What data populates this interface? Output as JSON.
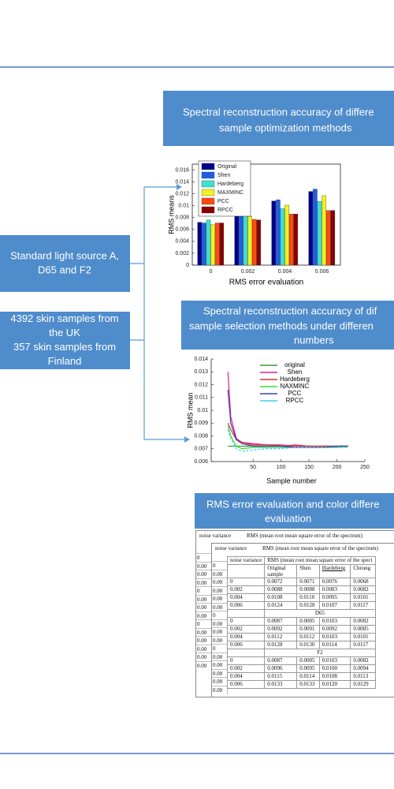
{
  "left_boxes": [
    {
      "lines": [
        "Standard light source A,",
        "D65 and F2"
      ]
    },
    {
      "lines": [
        "4392 skin samples from",
        "the UK",
        "357 skin samples from",
        "Finland"
      ]
    }
  ],
  "panels": [
    {
      "lines": [
        "Spectral reconstruction accuracy of differe",
        "sample optimization methods"
      ]
    },
    {
      "lines": [
        "Spectral reconstruction accuracy of dif",
        "sample selection methods under differen",
        "numbers"
      ]
    },
    {
      "lines": [
        "RMS error evaluation and color differe",
        "evaluation"
      ]
    }
  ],
  "chart_data": [
    {
      "type": "bar",
      "categories": [
        "0",
        "0.002",
        "0.004",
        "0.006"
      ],
      "series": [
        {
          "name": "Original",
          "color": "#00008b",
          "values": [
            0.0072,
            0.0088,
            0.0108,
            0.0124
          ]
        },
        {
          "name": "Shen",
          "color": "#1f5fe0",
          "values": [
            0.0071,
            0.0088,
            0.011,
            0.0128
          ]
        },
        {
          "name": "Hardeberg",
          "color": "#3ee0d0",
          "values": [
            0.0076,
            0.0083,
            0.0095,
            0.0107
          ]
        },
        {
          "name": "MAXMINC",
          "color": "#f2f21e",
          "values": [
            0.0068,
            0.0082,
            0.0101,
            0.0117
          ]
        },
        {
          "name": "PCC",
          "color": "#ff4a10",
          "values": [
            0.0071,
            0.0077,
            0.0086,
            0.0092
          ]
        },
        {
          "name": "RPCC",
          "color": "#8b0000",
          "values": [
            0.0071,
            0.0076,
            0.0086,
            0.0092
          ]
        }
      ],
      "ylim": [
        0,
        0.017
      ],
      "yticks": [
        0,
        0.002,
        0.004,
        0.006,
        0.008,
        0.01,
        0.012,
        0.014,
        0.016
      ],
      "xlabel": "RMS error evaluation",
      "ylabel": "RMS means",
      "legend": "upper-left"
    },
    {
      "type": "line",
      "x": [
        5,
        10,
        20,
        30,
        50,
        75,
        100,
        125,
        150,
        175,
        200,
        220
      ],
      "series": [
        {
          "name": "original",
          "color": "#3d9b35",
          "values": [
            0.0072,
            0.0072,
            0.0072,
            0.0072,
            0.0072,
            0.0072,
            0.0072,
            0.0072,
            0.0072,
            0.0072,
            0.0072,
            0.0072
          ]
        },
        {
          "name": "Shen",
          "color": "#e0208a",
          "values": [
            0.013,
            0.0095,
            0.0078,
            0.0075,
            0.0074,
            0.0073,
            0.0073,
            0.0072,
            0.0072,
            0.0072,
            0.0072,
            0.0072
          ]
        },
        {
          "name": "Hardeberg",
          "color": "#e03030",
          "values": [
            0.009,
            0.0085,
            0.0077,
            0.0075,
            0.0073,
            0.0073,
            0.0072,
            0.0073,
            0.0072,
            0.0072,
            0.0072,
            0.0072
          ]
        },
        {
          "name": "NAXMINC",
          "color": "#33dd33",
          "values": [
            0.0088,
            0.008,
            0.0072,
            0.007,
            0.0071,
            0.0071,
            0.0071,
            0.0071,
            0.0071,
            0.0071,
            0.0071,
            0.0072
          ]
        },
        {
          "name": "PCC",
          "color": "#4040c0",
          "values": [
            0.0116,
            0.009,
            0.0077,
            0.0074,
            0.0072,
            0.0072,
            0.0072,
            0.0071,
            0.0071,
            0.0071,
            0.0072,
            0.0072
          ]
        },
        {
          "name": "RPCC",
          "color": "#40d0e8",
          "values": [
            0.0085,
            0.0078,
            0.007,
            0.0068,
            0.0069,
            0.007,
            0.007,
            0.0071,
            0.0071,
            0.0071,
            0.0071,
            0.0071
          ]
        }
      ],
      "xlim": [
        -25,
        250
      ],
      "xticks": [
        50,
        100,
        150,
        200,
        250
      ],
      "ylim": [
        0.006,
        0.014
      ],
      "yticks": [
        0.006,
        0.007,
        0.008,
        0.009,
        0.01,
        0.011,
        0.012,
        0.013,
        0.014
      ],
      "xlabel": "Sample number",
      "ylabel": "RMS mean",
      "legend": "upper-right"
    }
  ],
  "table": {
    "layers": [
      {
        "header": [
          "noise variance",
          "RMS (mean root mean square error of the spectrum)"
        ],
        "left_column": [
          "0",
          "0.00",
          "0.00",
          "0.00",
          "0",
          "0.00",
          "0.00",
          "0.00",
          "0",
          "0.00",
          "0.00",
          "0.00",
          "0.00",
          "0.00"
        ]
      },
      {
        "header": [
          "noise variance",
          "RMS (mean root mean square error of the spectrum)"
        ],
        "left_column": [
          "0",
          "0.00",
          "0.00",
          "0.00",
          "0.00",
          "0.00",
          "0",
          "0.00",
          "0.00",
          "0.00",
          "0",
          "0.00",
          "0.00",
          "0.00",
          "0.00",
          "0.00"
        ]
      }
    ],
    "front": {
      "header": [
        "noise variance",
        "RMS (mean root mean square error of the spect"
      ],
      "columns": [
        "Original sample",
        "Shen",
        "Hardeberg",
        "Cheung"
      ],
      "groups": [
        {
          "rows": [
            [
              "0",
              "0.0072",
              "0.0071",
              "0.0076",
              "0.0068"
            ],
            [
              "0.002",
              "0.0088",
              "0.0088",
              "0.0083",
              "0.0082"
            ],
            [
              "0.004",
              "0.0108",
              "0.0110",
              "0.0095",
              "0.0101"
            ],
            [
              "0.006",
              "0.0124",
              "0.0128",
              "0.0107",
              "0.0117"
            ]
          ]
        },
        {
          "label": "D65",
          "rows": [
            [
              "0",
              "0.0087",
              "0.0085",
              "0.0103",
              "0.0082"
            ],
            [
              "0.002",
              "0.0092",
              "0.0091",
              "0.0092",
              "0.0085"
            ],
            [
              "0.004",
              "0.0112",
              "0.0112",
              "0.0103",
              "0.0101"
            ],
            [
              "0.006",
              "0.0128",
              "0.0130",
              "0.0114",
              "0.0117"
            ]
          ]
        },
        {
          "label": "F2",
          "rows": [
            [
              "0",
              "0.0087",
              "0.0085",
              "0.0103",
              "0.0082"
            ],
            [
              "0.002",
              "0.0096",
              "0.0095",
              "0.0100",
              "0.0094"
            ],
            [
              "0.004",
              "0.0115",
              "0.0114",
              "0.0108",
              "0.0113"
            ],
            [
              "0.006",
              "0.0133",
              "0.0133",
              "0.0120",
              "0.0129"
            ]
          ]
        }
      ]
    }
  }
}
